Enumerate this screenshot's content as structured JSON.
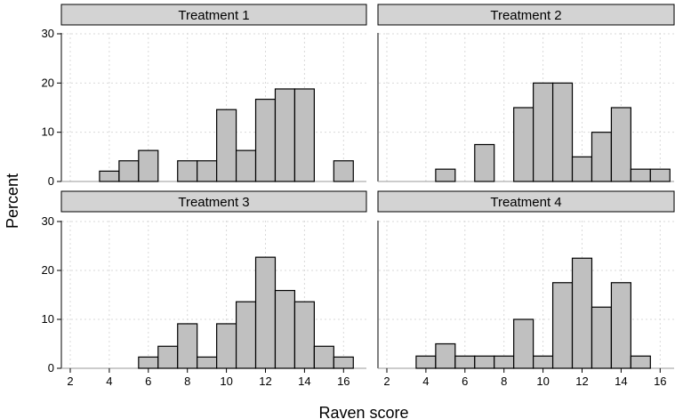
{
  "chart_data": {
    "type": "bar",
    "subtype": "histogram",
    "xlabel": "Raven score",
    "ylabel": "Percent",
    "xlim": [
      2,
      16.5
    ],
    "ylim": [
      0,
      30
    ],
    "x_ticks": [
      2,
      4,
      6,
      8,
      10,
      12,
      14,
      16
    ],
    "y_ticks": [
      0,
      10,
      20,
      30
    ],
    "grid": true,
    "bar_color": "#c0c0c0",
    "strip_color": "#d3d3d3",
    "bin_width": 1,
    "panels": [
      {
        "title": "Treatment 1",
        "bin_centers": [
          4,
          5,
          6,
          7,
          8,
          9,
          10,
          11,
          12,
          13,
          14,
          15,
          16
        ],
        "values": [
          2.1,
          4.2,
          6.3,
          0,
          4.2,
          4.2,
          14.6,
          6.3,
          16.7,
          18.8,
          18.8,
          0,
          4.2
        ]
      },
      {
        "title": "Treatment 2",
        "bin_centers": [
          5,
          6,
          7,
          8,
          9,
          10,
          11,
          12,
          13,
          14,
          15,
          16
        ],
        "values": [
          2.5,
          0,
          7.5,
          0,
          15,
          20,
          20,
          5,
          10,
          15,
          2.5,
          2.5
        ]
      },
      {
        "title": "Treatment 3",
        "bin_centers": [
          6,
          7,
          8,
          9,
          10,
          11,
          12,
          13,
          14,
          15,
          16
        ],
        "values": [
          2.3,
          4.5,
          9.1,
          2.3,
          9.1,
          13.6,
          22.7,
          15.9,
          13.6,
          4.5,
          2.3
        ]
      },
      {
        "title": "Treatment 4",
        "bin_centers": [
          4,
          5,
          6,
          7,
          8,
          9,
          10,
          11,
          12,
          13,
          14,
          15
        ],
        "values": [
          2.5,
          5,
          2.5,
          2.5,
          2.5,
          10,
          2.5,
          17.5,
          22.5,
          12.5,
          17.5,
          2.5
        ]
      }
    ]
  }
}
